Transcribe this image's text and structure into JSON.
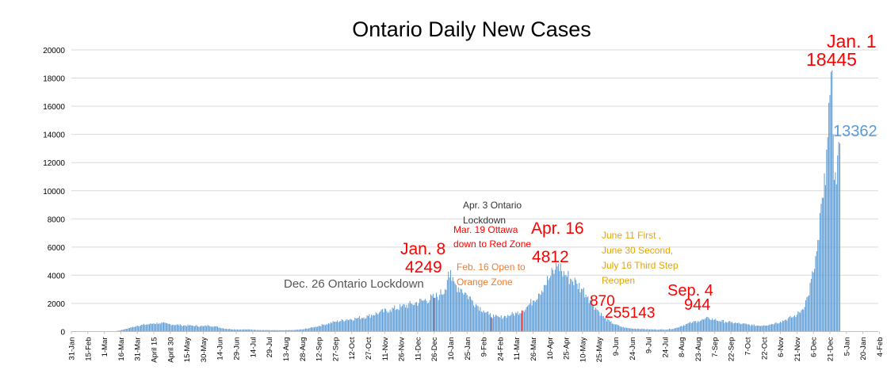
{
  "chart_data": {
    "type": "bar",
    "title": "Ontario Daily New Cases",
    "xlabel": "",
    "ylabel": "",
    "ylim": [
      0,
      20000
    ],
    "yticks": [
      "0",
      "2000",
      "4000",
      "6000",
      "8000",
      "10000",
      "12000",
      "14000",
      "16000",
      "18000",
      "20000"
    ],
    "grid": true,
    "legend": "none",
    "bar_color": "#5b9bd5",
    "highlight_color": "#c00000",
    "x_start_date": "31-Jan-2020",
    "x_end_date": "4-Feb-2022",
    "tick_labels": [
      "31-Jan",
      "15-Feb",
      "1-Mar",
      "16-Mar",
      "31-Mar",
      "April 15",
      "April 30",
      "15-May",
      "30-May",
      "14-Jun",
      "29-Jun",
      "14-Jul",
      "29-Jul",
      "13-Aug",
      "28-Aug",
      "12-Sep",
      "27-Sep",
      "12-Oct",
      "27-Oct",
      "11-Nov",
      "26-Nov",
      "11-Dec",
      "26-Dec",
      "10-Jan",
      "25-Jan",
      "9-Feb",
      "24-Feb",
      "11-Mar",
      "26-Mar",
      "10-Apr",
      "25-Apr",
      "10-May",
      "25-May",
      "9-Jun",
      "24-Jun",
      "9-Jul",
      "24-Jul",
      "8-Aug",
      "23-Aug",
      "7-Sep",
      "22-Sep",
      "7-Oct",
      "22-Oct",
      "6-Nov",
      "21-Nov",
      "6-Dec",
      "21-Dec",
      "5-Jan",
      "20-Jan",
      "4-Feb"
    ],
    "anchor_values": [
      [
        0,
        0
      ],
      [
        30,
        5
      ],
      [
        40,
        20
      ],
      [
        48,
        150
      ],
      [
        55,
        300
      ],
      [
        60,
        420
      ],
      [
        70,
        520
      ],
      [
        75,
        580
      ],
      [
        80,
        600
      ],
      [
        90,
        520
      ],
      [
        100,
        450
      ],
      [
        110,
        420
      ],
      [
        120,
        380
      ],
      [
        125,
        430
      ],
      [
        130,
        380
      ],
      [
        140,
        200
      ],
      [
        150,
        150
      ],
      [
        160,
        150
      ],
      [
        170,
        120
      ],
      [
        180,
        100
      ],
      [
        190,
        90
      ],
      [
        200,
        100
      ],
      [
        210,
        150
      ],
      [
        220,
        300
      ],
      [
        230,
        500
      ],
      [
        240,
        700
      ],
      [
        250,
        850
      ],
      [
        260,
        950
      ],
      [
        270,
        1100
      ],
      [
        280,
        1350
      ],
      [
        290,
        1550
      ],
      [
        300,
        1750
      ],
      [
        310,
        1950
      ],
      [
        320,
        2200
      ],
      [
        330,
        2400
      ],
      [
        335,
        2600
      ],
      [
        340,
        3000
      ],
      [
        343,
        4249
      ],
      [
        346,
        3600
      ],
      [
        350,
        3300
      ],
      [
        355,
        3000
      ],
      [
        360,
        2600
      ],
      [
        365,
        2200
      ],
      [
        370,
        1800
      ],
      [
        375,
        1500
      ],
      [
        380,
        1200
      ],
      [
        385,
        1050
      ],
      [
        390,
        1000
      ],
      [
        395,
        1100
      ],
      [
        400,
        1200
      ],
      [
        405,
        1300
      ],
      [
        410,
        1500
      ],
      [
        415,
        1800
      ],
      [
        420,
        2200
      ],
      [
        425,
        2700
      ],
      [
        430,
        3300
      ],
      [
        435,
        3800
      ],
      [
        440,
        4400
      ],
      [
        443,
        4812
      ],
      [
        446,
        4300
      ],
      [
        450,
        4000
      ],
      [
        455,
        3700
      ],
      [
        460,
        3400
      ],
      [
        465,
        3000
      ],
      [
        470,
        2500
      ],
      [
        475,
        1900
      ],
      [
        480,
        1400
      ],
      [
        485,
        950
      ],
      [
        490,
        700
      ],
      [
        495,
        500
      ],
      [
        500,
        350
      ],
      [
        505,
        260
      ],
      [
        510,
        220
      ],
      [
        515,
        200
      ],
      [
        520,
        180
      ],
      [
        525,
        160
      ],
      [
        530,
        150
      ],
      [
        535,
        145
      ],
      [
        540,
        143
      ],
      [
        545,
        180
      ],
      [
        550,
        250
      ],
      [
        555,
        400
      ],
      [
        560,
        550
      ],
      [
        565,
        650
      ],
      [
        570,
        750
      ],
      [
        575,
        850
      ],
      [
        580,
        944
      ],
      [
        585,
        850
      ],
      [
        590,
        750
      ],
      [
        595,
        700
      ],
      [
        600,
        650
      ],
      [
        605,
        600
      ],
      [
        610,
        550
      ],
      [
        615,
        500
      ],
      [
        620,
        450
      ],
      [
        625,
        420
      ],
      [
        630,
        450
      ],
      [
        635,
        500
      ],
      [
        640,
        600
      ],
      [
        645,
        700
      ],
      [
        650,
        850
      ],
      [
        655,
        1000
      ],
      [
        660,
        1200
      ],
      [
        665,
        1600
      ],
      [
        670,
        2500
      ],
      [
        675,
        4200
      ],
      [
        680,
        6500
      ],
      [
        683,
        9500
      ],
      [
        686,
        10400
      ],
      [
        688,
        13800
      ],
      [
        690,
        16800
      ],
      [
        691,
        18445
      ],
      [
        693,
        14000
      ],
      [
        695,
        11300
      ],
      [
        697,
        12500
      ],
      [
        699,
        13362
      ]
    ],
    "annotations": [
      {
        "text": "Dec. 26 Ontario Lockdown",
        "color": "#555555"
      },
      {
        "text": "Jan. 8",
        "color": "#ff0000"
      },
      {
        "text": "4249",
        "color": "#ff0000"
      },
      {
        "text": "Apr. 3 Ontario",
        "color": "#333333"
      },
      {
        "text": "Lockdown",
        "color": "#333333"
      },
      {
        "text": "Mar. 19 Ottawa",
        "color": "#ff0000"
      },
      {
        "text": "down to Red Zone",
        "color": "#ff0000"
      },
      {
        "text": "Feb. 16 Open to",
        "color": "#ed7d31"
      },
      {
        "text": "Orange Zone",
        "color": "#ed7d31"
      },
      {
        "text": "Apr. 16",
        "color": "#ff0000"
      },
      {
        "text": "4812",
        "color": "#ff0000"
      },
      {
        "text": "June 11 First ,",
        "color": "#e6a500"
      },
      {
        "text": "June 30 Second,",
        "color": "#e6a500"
      },
      {
        "text": "July 16 Third Step",
        "color": "#e6a500"
      },
      {
        "text": "Reopen",
        "color": "#e6a500"
      },
      {
        "text": "870",
        "color": "#ff0000"
      },
      {
        "text": "255143",
        "color": "#ff0000"
      },
      {
        "text": "Sep. 4",
        "color": "#ff0000"
      },
      {
        "text": "944",
        "color": "#ff0000"
      },
      {
        "text": "Jan. 1",
        "color": "#ff0000"
      },
      {
        "text": "18445",
        "color": "#ff0000"
      },
      {
        "text": "13362",
        "color": "#5b9bd5"
      }
    ]
  }
}
